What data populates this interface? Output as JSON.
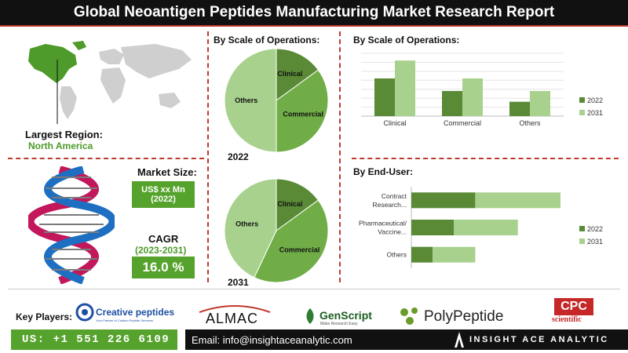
{
  "title": "Global Neoantigen Peptides Manufacturing Market Research Report",
  "region": {
    "label": "Largest Region:",
    "value": "North America"
  },
  "market_size": {
    "label": "Market Size:",
    "value_line1": "US$ xx Mn",
    "value_line2": "(2022)"
  },
  "cagr": {
    "label": "CAGR",
    "period": "(2023-2031)",
    "value": "16.0 %"
  },
  "pie_heading": "By Scale of Operations:",
  "bar_heading": "By Scale of Operations:",
  "enduser_heading": "By End-User:",
  "key_players_label": "Key Players:",
  "players": [
    {
      "name": "Creative peptides",
      "tagline": "Your Partner of Custom Peptide Services"
    },
    {
      "name": "ALMAC"
    },
    {
      "name": "GenScript",
      "tagline": "Make Research Easy"
    },
    {
      "name": "PolyPeptide"
    },
    {
      "name": "CPC",
      "sub": "scientific"
    }
  ],
  "footer": {
    "phone": "US: +1 551 226 6109",
    "email": "Email: info@insightaceanalytic.com",
    "brand": "INSIGHT ACE ANALYTIC"
  },
  "colors": {
    "dark_green": "#5a8a36",
    "mid_green": "#70ad47",
    "light_green": "#a9d18e",
    "accent_red": "#c0392b",
    "map_green": "#4e9a2a"
  },
  "chart_data": [
    {
      "type": "pie",
      "year_label": "2022",
      "labels": [
        "Clinical",
        "Commercial",
        "Others"
      ],
      "values": [
        15,
        35,
        50
      ]
    },
    {
      "type": "pie",
      "year_label": "2031",
      "labels": [
        "Clinical",
        "Commercial",
        "Others"
      ],
      "values": [
        15,
        42,
        43
      ]
    },
    {
      "type": "bar",
      "categories": [
        "Clinical",
        "Commercial",
        "Others"
      ],
      "series": [
        {
          "name": "2022",
          "values": [
            42,
            28,
            16
          ]
        },
        {
          "name": "2031",
          "values": [
            62,
            42,
            28
          ]
        }
      ],
      "ylim": [
        0,
        70
      ]
    },
    {
      "type": "bar",
      "orientation": "horizontal",
      "categories": [
        "Contract Research...",
        "Pharmaceutical/ Vaccine...",
        "Others"
      ],
      "series": [
        {
          "name": "2022",
          "values": [
            60,
            40,
            20
          ]
        },
        {
          "name": "2031",
          "values": [
            80,
            60,
            40
          ]
        }
      ],
      "xlim": [
        0,
        140
      ]
    }
  ]
}
